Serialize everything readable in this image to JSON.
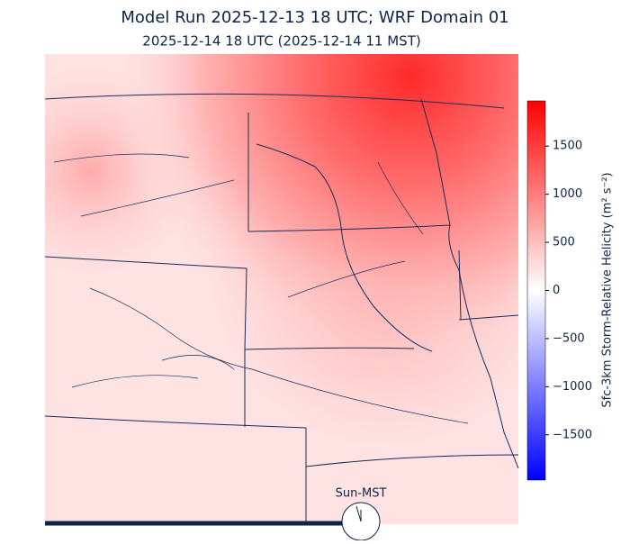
{
  "title": "Model Run 2025-12-13 18 UTC; WRF Domain 01",
  "subtitle": "2025-12-14 18 UTC  (2025-12-14 11 MST)",
  "colorbar": {
    "label": "Sfc-3km Storm-Relative Helicity (m² s⁻²)",
    "lim": [
      -1970,
      1970
    ],
    "ticks": [
      {
        "value": -1500,
        "label": "−1500"
      },
      {
        "value": -1000,
        "label": "−1000"
      },
      {
        "value": -500,
        "label": "−500"
      },
      0,
      500,
      1000,
      1500
    ]
  },
  "clock": {
    "label": "Sun-MST"
  }
}
